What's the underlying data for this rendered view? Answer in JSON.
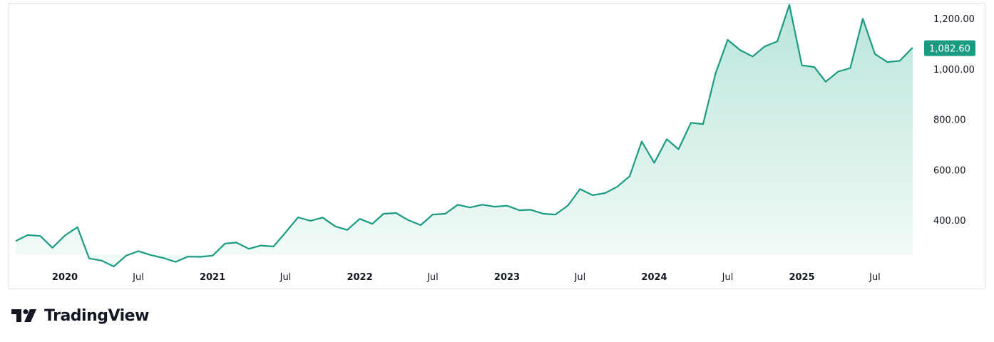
{
  "brand": {
    "name": "TradingView"
  },
  "colors": {
    "line": "#1a9b82",
    "fill_top": "#b9e5da",
    "fill_bottom": "#f4fbf9",
    "badge": "#1a9b82",
    "text": "#131722"
  },
  "chart_data": {
    "type": "area",
    "title": "",
    "xlabel": "",
    "ylabel": "",
    "ylim": [
      265,
      1260
    ],
    "y_ticks": [
      "1,200.00",
      "1,000.00",
      "800.00",
      "600.00",
      "400.00"
    ],
    "y_tick_values": [
      1200,
      1000,
      800,
      600,
      400
    ],
    "x_ticks": [
      {
        "label": "2020",
        "date": "2020-01",
        "major": true
      },
      {
        "label": "Jul",
        "date": "2020-07",
        "major": false
      },
      {
        "label": "2021",
        "date": "2021-01",
        "major": true
      },
      {
        "label": "Jul",
        "date": "2021-07",
        "major": false
      },
      {
        "label": "2022",
        "date": "2022-01",
        "major": true
      },
      {
        "label": "Jul",
        "date": "2022-07",
        "major": false
      },
      {
        "label": "2023",
        "date": "2023-01",
        "major": true
      },
      {
        "label": "Jul",
        "date": "2023-07",
        "major": false
      },
      {
        "label": "2024",
        "date": "2024-01",
        "major": true
      },
      {
        "label": "Jul",
        "date": "2024-07",
        "major": false
      },
      {
        "label": "2025",
        "date": "2025-01",
        "major": true
      },
      {
        "label": "Jul",
        "date": "2025-07",
        "major": false
      }
    ],
    "last_value_label": "1,082.60",
    "grid": false,
    "series": [
      {
        "x": [
          "2019-09",
          "2019-10",
          "2019-11",
          "2019-12",
          "2020-01",
          "2020-02",
          "2020-03",
          "2020-04",
          "2020-05",
          "2020-06",
          "2020-07",
          "2020-08",
          "2020-09",
          "2020-10",
          "2020-11",
          "2020-12",
          "2021-01",
          "2021-02",
          "2021-03",
          "2021-04",
          "2021-05",
          "2021-06",
          "2021-07",
          "2021-08",
          "2021-09",
          "2021-10",
          "2021-11",
          "2021-12",
          "2022-01",
          "2022-02",
          "2022-03",
          "2022-04",
          "2022-05",
          "2022-06",
          "2022-07",
          "2022-08",
          "2022-09",
          "2022-10",
          "2022-11",
          "2022-12",
          "2023-01",
          "2023-02",
          "2023-03",
          "2023-04",
          "2023-05",
          "2023-06",
          "2023-07",
          "2023-08",
          "2023-09",
          "2023-10",
          "2023-11",
          "2023-12",
          "2024-01",
          "2024-02",
          "2024-03",
          "2024-04",
          "2024-05",
          "2024-06",
          "2024-07",
          "2024-08",
          "2024-09",
          "2024-10",
          "2024-11",
          "2024-12",
          "2025-01",
          "2025-02",
          "2025-03",
          "2025-04",
          "2025-05",
          "2025-06",
          "2025-07",
          "2025-08",
          "2025-09",
          "2025-10"
        ],
        "values": [
          318,
          342,
          338,
          291,
          340,
          373,
          249,
          240,
          217,
          260,
          278,
          262,
          251,
          235,
          256,
          255,
          260,
          308,
          312,
          287,
          300,
          296,
          352,
          412,
          398,
          411,
          376,
          362,
          406,
          386,
          426,
          429,
          401,
          381,
          423,
          426,
          462,
          451,
          462,
          454,
          458,
          440,
          442,
          426,
          423,
          459,
          524,
          500,
          508,
          533,
          575,
          713,
          628,
          722,
          682,
          787,
          782,
          983,
          1116,
          1075,
          1050,
          1090,
          1110,
          1255,
          1015,
          1008,
          950,
          990,
          1004,
          1200,
          1060,
          1028,
          1033,
          1083
        ]
      }
    ]
  }
}
